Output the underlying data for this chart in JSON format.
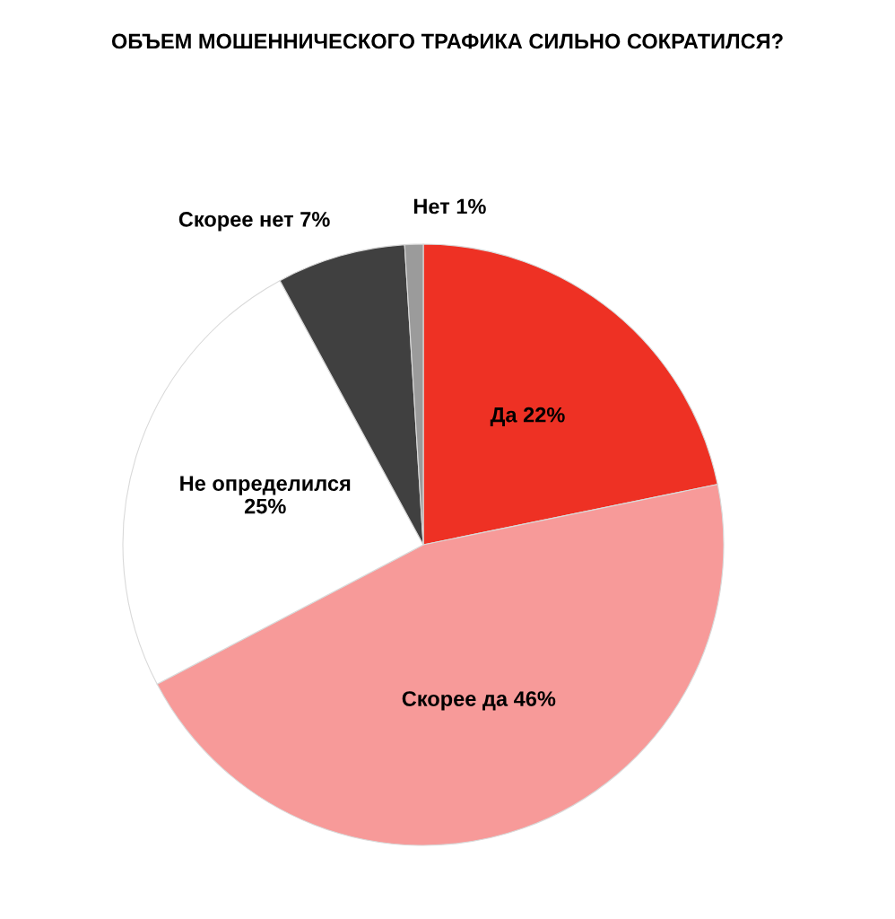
{
  "chart_data": {
    "type": "pie",
    "title": "ОБЪЕМ МОШЕННИЧЕСКОГО ТРАФИКА СИЛЬНО СОКРАТИЛСЯ?",
    "categories": [
      "Да",
      "Скорее да",
      "Не определился",
      "Скорее нет",
      "Нет"
    ],
    "values": [
      22,
      46,
      25,
      7,
      1
    ],
    "value_labels": [
      "22%",
      "46%",
      "25%",
      "7%",
      "1%"
    ],
    "colors": [
      "#ee3124",
      "#f79a99",
      "#ffffff",
      "#404040",
      "#9b9b9b"
    ],
    "legend": false
  }
}
